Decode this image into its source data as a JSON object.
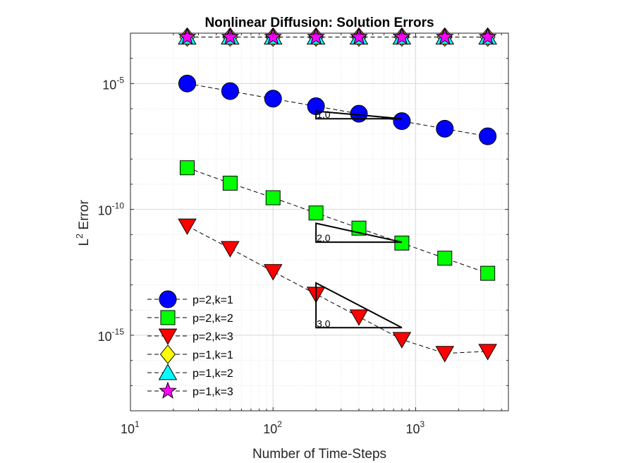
{
  "chart_data": {
    "type": "line",
    "title": "Nonlinear Diffusion: Solution Errors",
    "xlabel": "Number of Time-Steps",
    "ylabel": "L^2 Error",
    "ylabel_base": "L",
    "ylabel_sup": "2",
    "ylabel_rest": " Error",
    "xscale": "log",
    "yscale": "log",
    "xlim": [
      10,
      4470
    ],
    "ylim": [
      1e-18,
      0.001
    ],
    "grid": true,
    "minor_grid": true,
    "legend_position": "bottom-left",
    "x_ticks": [
      {
        "value": 10,
        "base": "10",
        "exp": "1"
      },
      {
        "value": 100,
        "base": "10",
        "exp": "2"
      },
      {
        "value": 1000,
        "base": "10",
        "exp": "3"
      }
    ],
    "y_ticks": [
      {
        "value": 1e-05,
        "base": "10",
        "exp": "-5"
      },
      {
        "value": 1e-10,
        "base": "10",
        "exp": "-10"
      },
      {
        "value": 1e-15,
        "base": "10",
        "exp": "-15"
      }
    ],
    "x": [
      25,
      50,
      100,
      200,
      400,
      800,
      1600,
      3200
    ],
    "series": [
      {
        "name": "p=2,k=1",
        "marker": "circle",
        "color": "#0000ff",
        "values": [
          1e-05,
          5e-06,
          2.5e-06,
          1.25e-06,
          6.3e-07,
          3.2e-07,
          1.6e-07,
          8e-08
        ]
      },
      {
        "name": "p=2,k=2",
        "marker": "square",
        "color": "#00ff00",
        "values": [
          4.5e-09,
          1.1e-09,
          2.9e-10,
          7.2e-11,
          1.8e-11,
          4.6e-12,
          1.15e-12,
          2.9e-13
        ]
      },
      {
        "name": "p=2,k=3",
        "marker": "triangle-down",
        "color": "#ff0000",
        "values": [
          2.2e-11,
          2.8e-12,
          3.4e-13,
          4.3e-14,
          5.4e-15,
          6.8e-16,
          1.9e-16,
          2.3e-16
        ]
      },
      {
        "name": "p=1,k=1",
        "marker": "diamond",
        "color": "#ffff00",
        "values": [
          0.0007,
          0.0007,
          0.0007,
          0.0007,
          0.0007,
          0.0007,
          0.0007,
          0.0007
        ]
      },
      {
        "name": "p=1,k=2",
        "marker": "triangle-up",
        "color": "#00ffff",
        "values": [
          0.0007,
          0.0007,
          0.0007,
          0.0007,
          0.0007,
          0.0007,
          0.0007,
          0.0007
        ]
      },
      {
        "name": "p=1,k=3",
        "marker": "star",
        "color": "#ff00ff",
        "values": [
          0.0007,
          0.0007,
          0.0007,
          0.0007,
          0.0007,
          0.0007,
          0.0007,
          0.0007
        ]
      }
    ],
    "slope_triangles": [
      {
        "label": "1.0",
        "x0": 200,
        "x1": 800,
        "y_base": 8e-07,
        "y_top": 4e-07
      },
      {
        "label": "2.0",
        "x0": 200,
        "x1": 800,
        "y_base": 2.8e-11,
        "y_top": 5e-12
      },
      {
        "label": "3.0",
        "x0": 200,
        "x1": 800,
        "y_base": 1.2e-13,
        "y_top": 2e-15
      }
    ]
  }
}
